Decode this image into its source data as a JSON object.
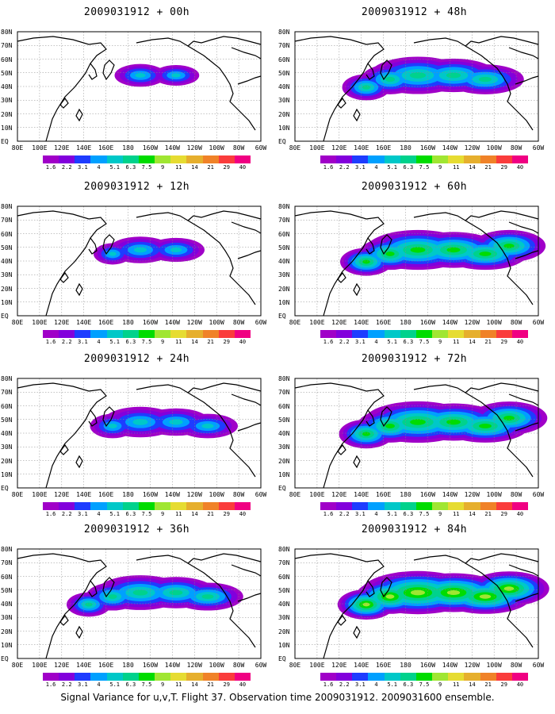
{
  "footer": "Signal Variance for u,v,T. Flight 37. Observation time 2009031912. 2009031600 ensemble.",
  "lon_labels": [
    "80E",
    "100E",
    "120E",
    "140E",
    "160E",
    "180",
    "160W",
    "140W",
    "120W",
    "100W",
    "80W",
    "60W"
  ],
  "lat_labels": [
    "80N",
    "70N",
    "60N",
    "50N",
    "40N",
    "30N",
    "20N",
    "10N",
    "EQ"
  ],
  "colorbar": {
    "labels": [
      "1.6",
      "2.2",
      "3.1",
      "4",
      "5.1",
      "6.3",
      "7.5",
      "9",
      "11",
      "14",
      "21",
      "29",
      "40"
    ],
    "colors": [
      "#a000c8",
      "#8200dc",
      "#1e3cff",
      "#00a0ff",
      "#00c8c8",
      "#00d28c",
      "#00dc00",
      "#a0e632",
      "#e6dc32",
      "#e6af2d",
      "#f08228",
      "#fa3c3c",
      "#f00082"
    ]
  },
  "panels": [
    {
      "id": "p00",
      "title": "2009031912 + 00h",
      "lead_hours": 0,
      "coverage": 0.15,
      "peak": 0.35
    },
    {
      "id": "p12",
      "title": "2009031912 + 12h",
      "lead_hours": 12,
      "coverage": 0.3,
      "peak": 0.38
    },
    {
      "id": "p24",
      "title": "2009031912 + 24h",
      "lead_hours": 24,
      "coverage": 0.45,
      "peak": 0.42
    },
    {
      "id": "p36",
      "title": "2009031912 + 36h",
      "lead_hours": 36,
      "coverage": 0.62,
      "peak": 0.45
    },
    {
      "id": "p48",
      "title": "2009031912 + 48h",
      "lead_hours": 48,
      "coverage": 0.72,
      "peak": 0.48
    },
    {
      "id": "p60",
      "title": "2009031912 + 60h",
      "lead_hours": 60,
      "coverage": 0.82,
      "peak": 0.52
    },
    {
      "id": "p72",
      "title": "2009031912 + 72h",
      "lead_hours": 72,
      "coverage": 0.88,
      "peak": 0.56
    },
    {
      "id": "p84",
      "title": "2009031912 + 84h",
      "lead_hours": 84,
      "coverage": 0.95,
      "peak": 0.62
    }
  ]
}
